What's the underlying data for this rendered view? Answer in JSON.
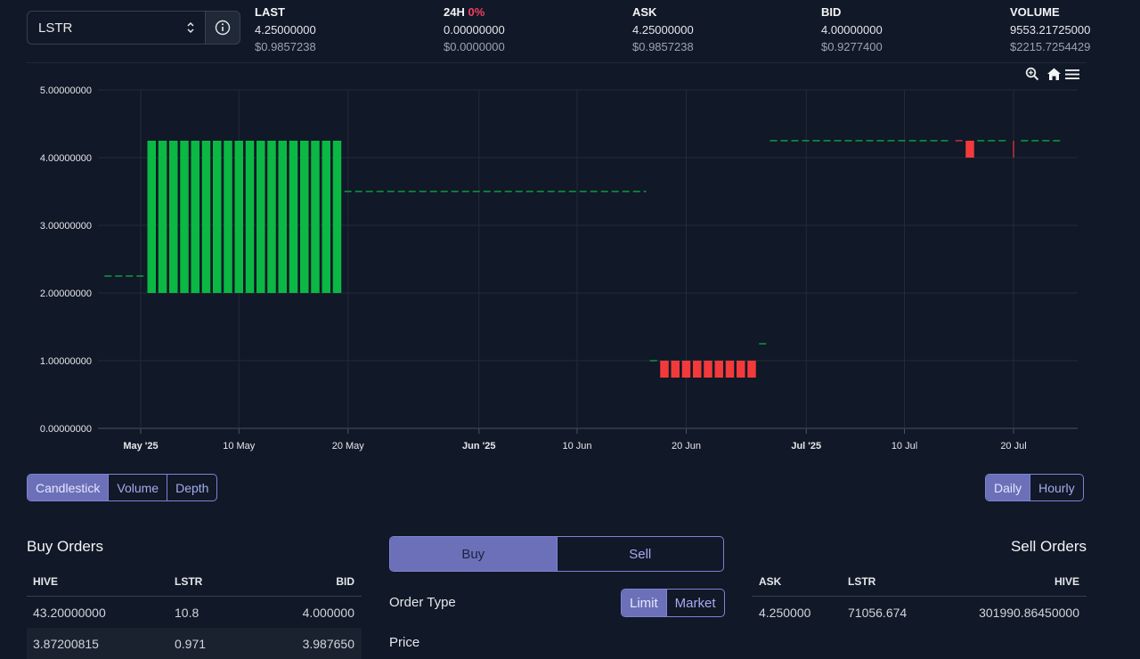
{
  "token_select": {
    "value": "LSTR"
  },
  "info_icon": "info-icon",
  "stats": {
    "last": {
      "label": "LAST",
      "value": "4.25000000",
      "usd": "$0.9857238"
    },
    "change": {
      "label": "24H",
      "pct": "0%",
      "value": "0.00000000",
      "usd": "$0.0000000"
    },
    "ask": {
      "label": "ASK",
      "value": "4.25000000",
      "usd": "$0.9857238"
    },
    "bid": {
      "label": "BID",
      "value": "4.00000000",
      "usd": "$0.9277400"
    },
    "volume": {
      "label": "VOLUME",
      "value": "9553.21725000",
      "usd": "$2215.7254429"
    }
  },
  "chart_toolbar": [
    "zoom-icon",
    "home-icon",
    "menu-icon"
  ],
  "chart_data": {
    "type": "candlestick",
    "y_ticks": [
      "0.00000000",
      "1.00000000",
      "2.00000000",
      "3.00000000",
      "4.00000000",
      "5.00000000"
    ],
    "ylim": [
      0,
      5
    ],
    "x_ticks": [
      {
        "label": "May '25",
        "day": 0,
        "bold": true
      },
      {
        "label": "10 May",
        "day": 9,
        "bold": false
      },
      {
        "label": "20 May",
        "day": 19,
        "bold": false
      },
      {
        "label": "Jun '25",
        "day": 31,
        "bold": true
      },
      {
        "label": "10 Jun",
        "day": 40,
        "bold": false
      },
      {
        "label": "20 Jun",
        "day": 50,
        "bold": false
      },
      {
        "label": "Jul '25",
        "day": 61,
        "bold": true
      },
      {
        "label": "10 Jul",
        "day": 70,
        "bold": false
      },
      {
        "label": "20 Jul",
        "day": 80,
        "bold": false
      }
    ],
    "candles": [
      {
        "day": 1,
        "open": 2.0,
        "close": 4.25
      },
      {
        "day": 2,
        "open": 2.0,
        "close": 4.25
      },
      {
        "day": 3,
        "open": 2.0,
        "close": 4.25
      },
      {
        "day": 4,
        "open": 2.0,
        "close": 4.25
      },
      {
        "day": 5,
        "open": 2.0,
        "close": 4.25
      },
      {
        "day": 6,
        "open": 2.0,
        "close": 4.25
      },
      {
        "day": 7,
        "open": 2.0,
        "close": 4.25
      },
      {
        "day": 8,
        "open": 2.0,
        "close": 4.25
      },
      {
        "day": 9,
        "open": 2.0,
        "close": 4.25
      },
      {
        "day": 10,
        "open": 2.0,
        "close": 4.25
      },
      {
        "day": 11,
        "open": 2.0,
        "close": 4.25
      },
      {
        "day": 12,
        "open": 2.0,
        "close": 4.25
      },
      {
        "day": 13,
        "open": 2.0,
        "close": 4.25
      },
      {
        "day": 14,
        "open": 2.0,
        "close": 4.25
      },
      {
        "day": 15,
        "open": 2.0,
        "close": 4.25
      },
      {
        "day": 16,
        "open": 2.0,
        "close": 4.25
      },
      {
        "day": 17,
        "open": 2.0,
        "close": 4.25
      },
      {
        "day": 18,
        "open": 2.0,
        "close": 4.25
      },
      {
        "day": 48,
        "open": 1.0,
        "close": 0.75
      },
      {
        "day": 49,
        "open": 1.0,
        "close": 0.75
      },
      {
        "day": 50,
        "open": 1.0,
        "close": 0.75
      },
      {
        "day": 51,
        "open": 1.0,
        "close": 0.75
      },
      {
        "day": 52,
        "open": 1.0,
        "close": 0.75
      },
      {
        "day": 53,
        "open": 1.0,
        "close": 0.75
      },
      {
        "day": 54,
        "open": 1.0,
        "close": 0.75
      },
      {
        "day": 55,
        "open": 1.0,
        "close": 0.75
      },
      {
        "day": 56,
        "open": 1.0,
        "close": 0.75
      },
      {
        "day": 76,
        "open": 4.25,
        "close": 4.0
      },
      {
        "day": 80,
        "open": 4.25,
        "close": 4.0
      }
    ],
    "flat_lines": [
      {
        "from": -3,
        "to": 0,
        "value": 2.25,
        "color": "green"
      },
      {
        "from": 19,
        "to": 46,
        "value": 3.5,
        "color": "green"
      },
      {
        "from": 47,
        "to": 47,
        "value": 1.0,
        "color": "green"
      },
      {
        "from": 57,
        "to": 57,
        "value": 1.25,
        "color": "green"
      },
      {
        "from": 58,
        "to": 74,
        "value": 4.25,
        "color": "green"
      },
      {
        "from": 75,
        "to": 75,
        "value": 4.25,
        "color": "red"
      },
      {
        "from": 77,
        "to": 79,
        "value": 4.25,
        "color": "green"
      },
      {
        "from": 81,
        "to": 84,
        "value": 4.25,
        "color": "green"
      }
    ]
  },
  "chart_types": [
    "Candlestick",
    "Volume",
    "Depth"
  ],
  "intervals": [
    "Daily",
    "Hourly"
  ],
  "buy_orders": {
    "title": "Buy Orders",
    "headers": [
      "HIVE",
      "LSTR",
      "BID"
    ],
    "rows": [
      [
        "43.20000000",
        "10.8",
        "4.000000"
      ],
      [
        "3.87200815",
        "0.971",
        "3.987650"
      ]
    ]
  },
  "trade_form": {
    "sides": [
      "Buy",
      "Sell"
    ],
    "order_type_label": "Order Type",
    "order_types": [
      "Limit",
      "Market"
    ],
    "price_label": "Price"
  },
  "sell_orders": {
    "title": "Sell Orders",
    "headers": [
      "ASK",
      "LSTR",
      "HIVE"
    ],
    "rows": [
      [
        "4.250000",
        "71056.674",
        "301990.86450000"
      ]
    ]
  },
  "colors": {
    "up": "#0bb843",
    "down": "#f23a3a",
    "accent": "#6b70b8",
    "grid": "#222b3a"
  }
}
